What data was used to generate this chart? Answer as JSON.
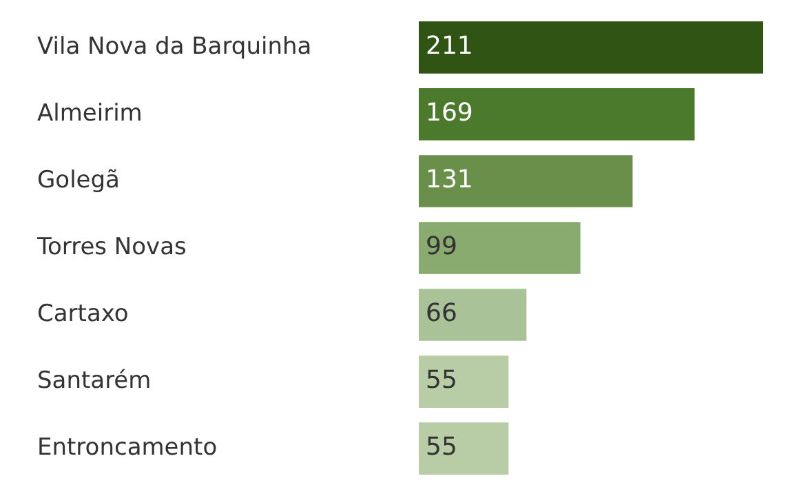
{
  "chart_data": {
    "type": "bar",
    "orientation": "horizontal",
    "categories": [
      "Vila Nova da Barquinha",
      "Almeirim",
      "Golegã",
      "Torres Novas",
      "Cartaxo",
      "Santarém",
      "Entroncamento"
    ],
    "values": [
      211,
      169,
      131,
      99,
      66,
      55,
      55
    ],
    "colors": [
      "#2f5414",
      "#4b7a2c",
      "#6a8f4a",
      "#8aab6f",
      "#a9c297",
      "#b8cda6",
      "#b8cda6"
    ],
    "data_labels": true,
    "legend": false
  }
}
